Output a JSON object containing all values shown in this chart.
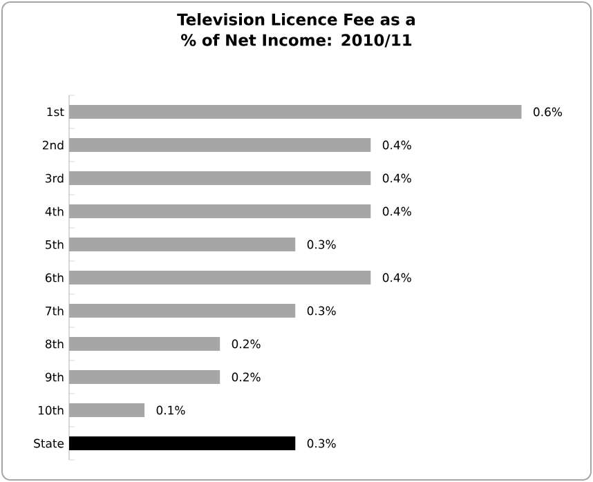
{
  "chart_data": {
    "type": "bar",
    "orientation": "horizontal",
    "title": "Television Licence Fee as a % of Net Income: 2010/11",
    "categories": [
      "1st",
      "2nd",
      "3rd",
      "4th",
      "5th",
      "6th",
      "7th",
      "8th",
      "9th",
      "10th",
      "State"
    ],
    "values": [
      0.6,
      0.4,
      0.4,
      0.4,
      0.3,
      0.4,
      0.3,
      0.2,
      0.2,
      0.1,
      0.3
    ],
    "colors": [
      "#a6a6a6",
      "#a6a6a6",
      "#a6a6a6",
      "#a6a6a6",
      "#a6a6a6",
      "#a6a6a6",
      "#a6a6a6",
      "#a6a6a6",
      "#a6a6a6",
      "#a6a6a6",
      "#000000"
    ],
    "value_labels": [
      "0.6%",
      "0.4%",
      "0.4%",
      "0.4%",
      "0.3%",
      "0.4%",
      "0.3%",
      "0.2%",
      "0.2%",
      "0.1%",
      "0.3%"
    ],
    "tick_labels": "y"
  }
}
